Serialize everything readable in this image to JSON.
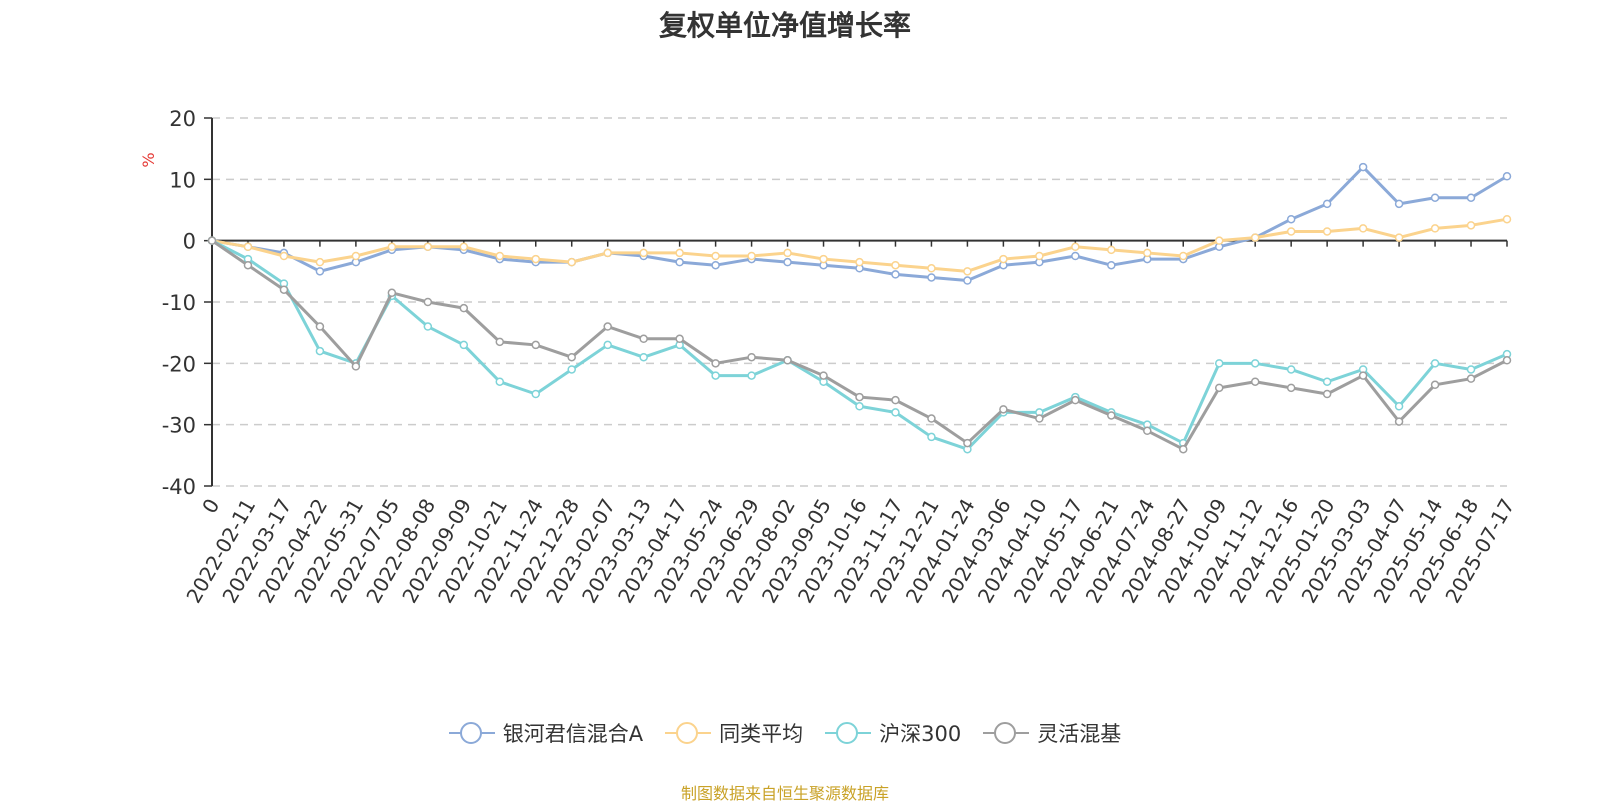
{
  "title": "复权单位净值增长率",
  "source_note": "制图数据来自恒生聚源数据库",
  "chart_data": {
    "type": "line",
    "title": "复权单位净值增长率",
    "ylabel": "%",
    "ylim": [
      -40,
      20
    ],
    "yticks": [
      20,
      10,
      0,
      -10,
      -20,
      -30,
      -40
    ],
    "grid": true,
    "legend_position": "bottom",
    "x": [
      "0",
      "2022-02-11",
      "2022-03-17",
      "2022-04-22",
      "2022-05-31",
      "2022-07-05",
      "2022-08-08",
      "2022-09-09",
      "2022-10-21",
      "2022-11-24",
      "2022-12-28",
      "2023-02-07",
      "2023-03-13",
      "2023-04-17",
      "2023-05-24",
      "2023-06-29",
      "2023-08-02",
      "2023-09-05",
      "2023-10-16",
      "2023-11-17",
      "2023-12-21",
      "2024-01-24",
      "2024-03-06",
      "2024-04-10",
      "2024-05-17",
      "2024-06-21",
      "2024-07-24",
      "2024-08-27",
      "2024-10-09",
      "2024-11-12",
      "2024-12-16",
      "2025-01-20",
      "2025-03-03",
      "2025-04-07",
      "2025-05-14",
      "2025-06-18",
      "2025-07-17"
    ],
    "series": [
      {
        "name": "银河君信混合A",
        "color": "#8ba9d8",
        "values": [
          0,
          -1.0,
          -2.0,
          -5.0,
          -3.5,
          -1.5,
          -1.0,
          -1.5,
          -3.0,
          -3.5,
          -3.5,
          -2.0,
          -2.5,
          -3.5,
          -4.0,
          -3.0,
          -3.5,
          -4.0,
          -4.5,
          -5.5,
          -6.0,
          -6.5,
          -4.0,
          -3.5,
          -2.5,
          -4.0,
          -3.0,
          -3.0,
          -1.0,
          0.5,
          3.5,
          6.0,
          12.0,
          6.0,
          7.0,
          7.0,
          10.5
        ]
      },
      {
        "name": "同类平均",
        "color": "#fbd38d",
        "values": [
          0,
          -1.0,
          -2.5,
          -3.5,
          -2.5,
          -1.0,
          -1.0,
          -1.0,
          -2.5,
          -3.0,
          -3.5,
          -2.0,
          -2.0,
          -2.0,
          -2.5,
          -2.5,
          -2.0,
          -3.0,
          -3.5,
          -4.0,
          -4.5,
          -5.0,
          -3.0,
          -2.5,
          -1.0,
          -1.5,
          -2.0,
          -2.5,
          0,
          0.5,
          1.5,
          1.5,
          2.0,
          0.5,
          2.0,
          2.5,
          3.5
        ]
      },
      {
        "name": "沪深300",
        "color": "#7dd3d8",
        "values": [
          0,
          -3.0,
          -7.0,
          -18.0,
          -20.0,
          -9.0,
          -14.0,
          -17.0,
          -23.0,
          -25.0,
          -21.0,
          -17.0,
          -19.0,
          -17.0,
          -22.0,
          -22.0,
          -19.5,
          -23.0,
          -27.0,
          -28.0,
          -32.0,
          -34.0,
          -28.0,
          -28.0,
          -25.5,
          -28.0,
          -30.0,
          -33.0,
          -20.0,
          -20.0,
          -21.0,
          -23.0,
          -21.0,
          -27.0,
          -20.0,
          -21.0,
          -18.5
        ]
      },
      {
        "name": "灵活混基",
        "color": "#9e9e9e",
        "values": [
          0,
          -4.0,
          -8.0,
          -14.0,
          -20.5,
          -8.5,
          -10.0,
          -11.0,
          -16.5,
          -17.0,
          -19.0,
          -14.0,
          -16.0,
          -16.0,
          -20.0,
          -19.0,
          -19.5,
          -22.0,
          -25.5,
          -26.0,
          -29.0,
          -33.0,
          -27.5,
          -29.0,
          -26.0,
          -28.5,
          -31.0,
          -34.0,
          -24.0,
          -23.0,
          -24.0,
          -25.0,
          -22.0,
          -29.5,
          -23.5,
          -22.5,
          -19.5
        ]
      }
    ]
  }
}
